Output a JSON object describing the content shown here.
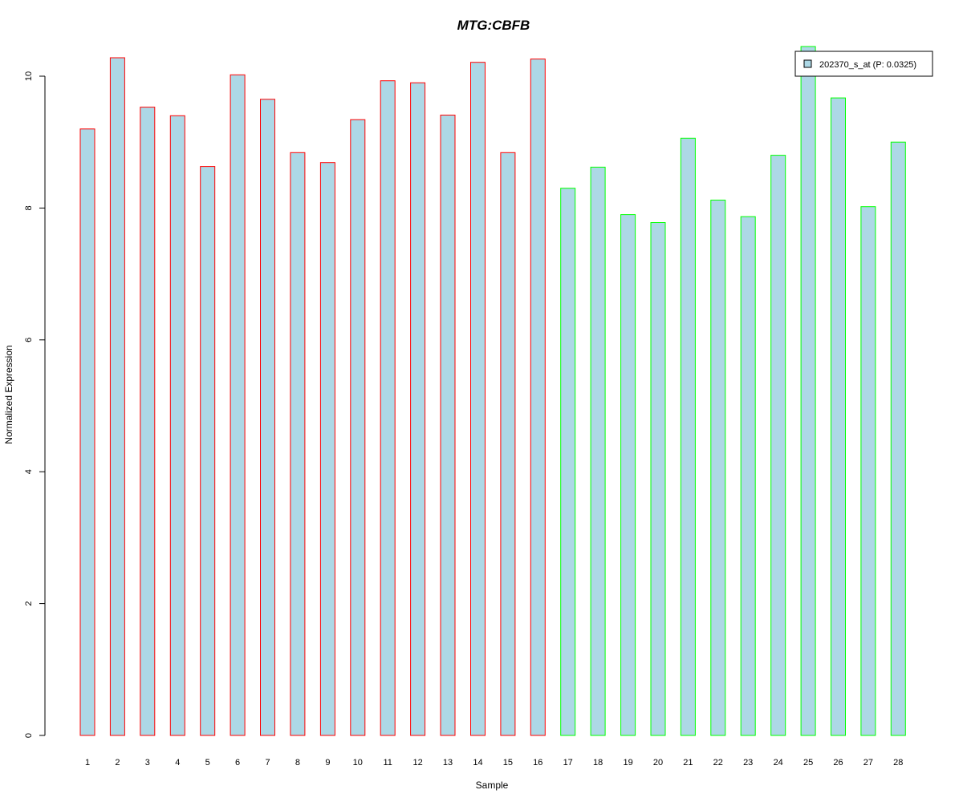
{
  "chart_data": {
    "type": "bar",
    "title": "MTG:CBFB",
    "xlabel": "Sample",
    "ylabel": "Normalized Expression",
    "categories": [
      "1",
      "2",
      "3",
      "4",
      "5",
      "6",
      "7",
      "8",
      "9",
      "10",
      "11",
      "12",
      "13",
      "14",
      "15",
      "16",
      "17",
      "18",
      "19",
      "20",
      "21",
      "22",
      "23",
      "24",
      "25",
      "26",
      "27",
      "28"
    ],
    "series": [
      {
        "name": "202370_s_at (P: 0.0325)",
        "values": [
          9.2,
          10.28,
          9.53,
          9.4,
          8.63,
          10.02,
          9.65,
          8.84,
          8.69,
          9.34,
          9.93,
          9.9,
          9.41,
          10.21,
          8.84,
          10.26,
          8.3,
          8.62,
          7.9,
          7.78,
          9.06,
          8.12,
          7.87,
          8.8,
          10.45,
          9.67,
          8.02,
          9.0
        ]
      }
    ],
    "groups": [
      1,
      1,
      1,
      1,
      1,
      1,
      1,
      1,
      1,
      1,
      1,
      1,
      1,
      1,
      1,
      1,
      2,
      2,
      2,
      2,
      2,
      2,
      2,
      2,
      2,
      2,
      2,
      2
    ],
    "ylim": [
      0,
      10.45
    ],
    "yticks": [
      0,
      2,
      4,
      6,
      8,
      10
    ],
    "grid": false,
    "legend_position": "top-right",
    "colors": {
      "bar_fill": "#add8e6",
      "group1_border": "#ff0000",
      "group2_border": "#00ff00",
      "title": "#0000cd",
      "axis": "#000000"
    }
  }
}
